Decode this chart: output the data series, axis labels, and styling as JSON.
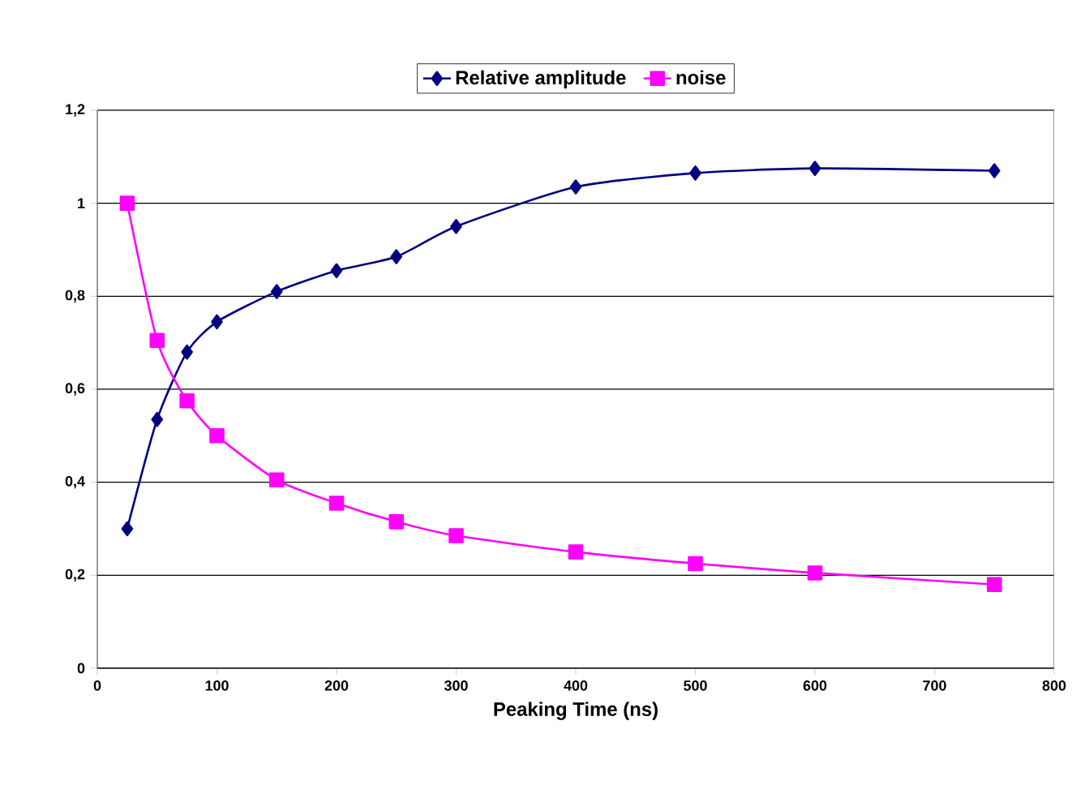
{
  "chart_data": {
    "type": "line",
    "xlabel": "Peaking Time (ns)",
    "x": [
      25,
      50,
      75,
      100,
      150,
      200,
      250,
      300,
      400,
      500,
      600,
      750
    ],
    "series": [
      {
        "name": "Relative amplitude",
        "color": "#000080",
        "marker": "diamond",
        "values": [
          0.3,
          0.535,
          0.68,
          0.745,
          0.81,
          0.855,
          0.885,
          0.95,
          1.035,
          1.065,
          1.075,
          1.07
        ]
      },
      {
        "name": "noise",
        "color": "#ff00ff",
        "marker": "square",
        "values": [
          1.0,
          0.705,
          0.575,
          0.5,
          0.405,
          0.355,
          0.315,
          0.285,
          0.25,
          0.225,
          0.205,
          0.18
        ]
      }
    ],
    "xlim": [
      0,
      800
    ],
    "xticks": [
      0,
      100,
      200,
      300,
      400,
      500,
      600,
      700,
      800
    ],
    "ylim": [
      0,
      1.2
    ],
    "yticks": [
      0,
      {
        "value": 0.2,
        "label": "0,2"
      },
      {
        "value": 0.4,
        "label": "0,4"
      },
      {
        "value": 0.6,
        "label": "0,6"
      },
      {
        "value": 0.8,
        "label": "0,8"
      },
      1,
      {
        "value": 1.2,
        "label": "1,2"
      }
    ],
    "grid": "y",
    "legend": "top",
    "line_style": "solid"
  }
}
